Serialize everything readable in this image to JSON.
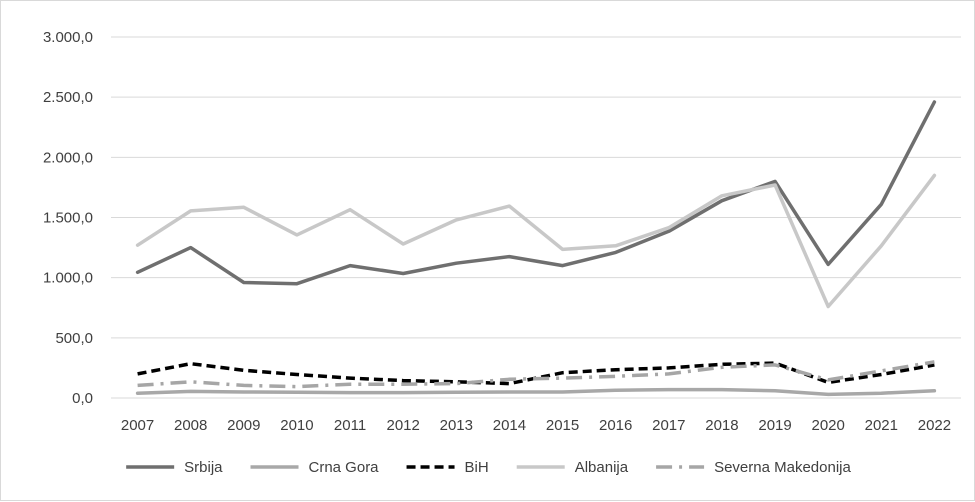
{
  "chart_data": {
    "type": "line",
    "title": "",
    "xlabel": "",
    "ylabel": "",
    "categories": [
      "2007",
      "2008",
      "2009",
      "2010",
      "2011",
      "2012",
      "2013",
      "2014",
      "2015",
      "2016",
      "2017",
      "2018",
      "2019",
      "2020",
      "2021",
      "2022"
    ],
    "ylim": [
      0,
      3000
    ],
    "y_ticks": [
      "0,0",
      "500,0",
      "1.000,0",
      "1.500,0",
      "2.000,0",
      "2.500,0",
      "3.000,0"
    ],
    "grid": true,
    "legend_position": "bottom",
    "series": [
      {
        "name": "Srbija",
        "color": "#6f6f6f",
        "style": "solid",
        "values": [
          1045,
          1250,
          960,
          950,
          1100,
          1035,
          1120,
          1175,
          1100,
          1210,
          1385,
          1640,
          1800,
          1110,
          1610,
          2460
        ]
      },
      {
        "name": "Crna Gora",
        "color": "#a8a8a8",
        "style": "solid",
        "values": [
          40,
          55,
          50,
          48,
          45,
          45,
          48,
          50,
          50,
          65,
          70,
          70,
          60,
          30,
          40,
          60
        ]
      },
      {
        "name": "BiH",
        "color": "#000000",
        "style": "dash",
        "values": [
          200,
          285,
          230,
          195,
          165,
          145,
          135,
          120,
          210,
          235,
          250,
          280,
          290,
          130,
          195,
          275
        ]
      },
      {
        "name": "Albanija",
        "color": "#c8c8c8",
        "style": "solid",
        "values": [
          1270,
          1555,
          1585,
          1355,
          1565,
          1280,
          1480,
          1595,
          1235,
          1265,
          1415,
          1680,
          1770,
          760,
          1265,
          1850
        ]
      },
      {
        "name": "Severna Makedonija",
        "color": "#a6a6a6",
        "style": "dashdot",
        "values": [
          105,
          135,
          105,
          95,
          115,
          115,
          120,
          155,
          165,
          180,
          200,
          255,
          275,
          150,
          225,
          300
        ]
      }
    ]
  }
}
